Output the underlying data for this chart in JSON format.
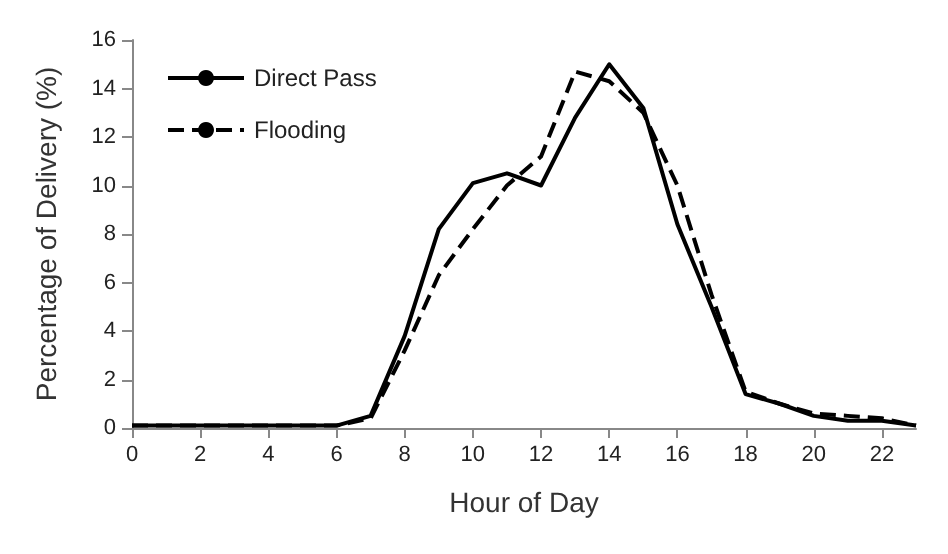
{
  "chart_data": {
    "type": "line",
    "xlabel": "Hour of Day",
    "ylabel": "Percentage of Delivery (%)",
    "x": [
      0,
      1,
      2,
      3,
      4,
      5,
      6,
      7,
      8,
      9,
      10,
      11,
      12,
      13,
      14,
      15,
      16,
      17,
      18,
      19,
      20,
      21,
      22,
      23
    ],
    "series": [
      {
        "name": "Direct Pass",
        "color": "#000000",
        "line_style": "solid",
        "values": [
          0.1,
          0.1,
          0.1,
          0.1,
          0.1,
          0.1,
          0.1,
          0.5,
          3.8,
          8.2,
          10.1,
          10.5,
          10.0,
          12.8,
          15.0,
          13.2,
          8.4,
          5.0,
          1.4,
          1.0,
          0.5,
          0.3,
          0.3,
          0.1
        ]
      },
      {
        "name": "Flooding",
        "color": "#000000",
        "line_style": "dashed",
        "values": [
          0.1,
          0.1,
          0.1,
          0.1,
          0.1,
          0.1,
          0.1,
          0.4,
          3.2,
          6.3,
          8.2,
          10.0,
          11.2,
          14.7,
          14.3,
          13.0,
          10.0,
          5.5,
          1.5,
          1.0,
          0.6,
          0.5,
          0.4,
          0.1
        ]
      }
    ],
    "xlim": [
      0,
      23
    ],
    "xticks": [
      0,
      2,
      4,
      6,
      8,
      10,
      12,
      14,
      16,
      18,
      20,
      22
    ],
    "ylim": [
      0,
      16
    ],
    "yticks": [
      0,
      2,
      4,
      6,
      8,
      10,
      12,
      14,
      16
    ],
    "grid": false,
    "legend": "top left",
    "marker": "none"
  }
}
